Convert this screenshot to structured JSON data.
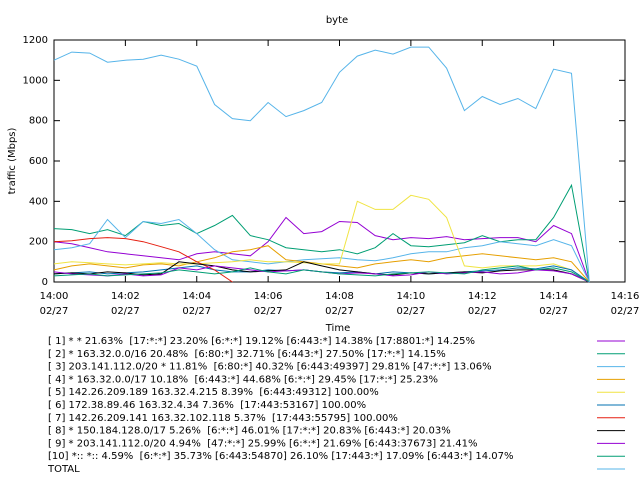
{
  "chart_data": {
    "type": "line",
    "title": "byte",
    "xlabel": "Time",
    "ylabel": "traffic (Mbps)",
    "x": [
      0,
      0.5,
      1,
      1.5,
      2,
      2.5,
      3,
      3.5,
      4,
      4.5,
      5,
      5.5,
      6,
      6.5,
      7,
      7.5,
      8,
      8.5,
      9,
      9.5,
      10,
      10.5,
      11,
      11.5,
      12,
      12.5,
      13,
      13.5,
      14,
      14.5,
      15
    ],
    "xlim": [
      0,
      16
    ],
    "xticks": [
      {
        "value": 0,
        "label": "14:00",
        "date": "02/27"
      },
      {
        "value": 2,
        "label": "14:02",
        "date": "02/27"
      },
      {
        "value": 4,
        "label": "14:04",
        "date": "02/27"
      },
      {
        "value": 6,
        "label": "14:06",
        "date": "02/27"
      },
      {
        "value": 8,
        "label": "14:08",
        "date": "02/27"
      },
      {
        "value": 10,
        "label": "14:10",
        "date": "02/27"
      },
      {
        "value": 12,
        "label": "14:12",
        "date": "02/27"
      },
      {
        "value": 14,
        "label": "14:14",
        "date": "02/27"
      },
      {
        "value": 16,
        "label": "14:16",
        "date": "02/27"
      }
    ],
    "ylim": [
      0,
      1200
    ],
    "yticks": [
      0,
      200,
      400,
      600,
      800,
      1000,
      1200
    ],
    "series": [
      {
        "name": "[ 1] * * 21.63%  [17:*:*] 23.20% [6:*:*] 19.12% [6:443:*] 14.38% [17:8801:*] 14.25%",
        "color": "#9400d3",
        "values": [
          200,
          190,
          170,
          150,
          140,
          130,
          120,
          110,
          140,
          150,
          140,
          130,
          200,
          320,
          240,
          250,
          300,
          295,
          230,
          210,
          220,
          215,
          225,
          210,
          215,
          220,
          220,
          200,
          280,
          240,
          0
        ]
      },
      {
        "name": "[ 2] * 163.32.0.0/16 20.48%  [6:80:*] 32.71% [6:443:*] 27.50% [17:*:*] 14.15%",
        "color": "#009e73",
        "values": [
          265,
          260,
          240,
          260,
          230,
          300,
          280,
          290,
          240,
          280,
          330,
          230,
          210,
          170,
          160,
          150,
          160,
          140,
          170,
          240,
          180,
          175,
          185,
          195,
          230,
          200,
          210,
          210,
          320,
          480,
          0
        ]
      },
      {
        "name": "[ 3] 203.141.112.0/20 * 11.81%  [6:80:*] 40.32% [6:443:49397] 29.81% [47:*:*] 13.06%",
        "color": "#56b4e9",
        "values": [
          160,
          170,
          190,
          310,
          220,
          300,
          290,
          310,
          240,
          160,
          110,
          100,
          90,
          100,
          110,
          115,
          120,
          110,
          105,
          120,
          140,
          150,
          150,
          170,
          180,
          200,
          190,
          180,
          210,
          180,
          0
        ]
      },
      {
        "name": "[ 4] * 163.32.0.0/17 10.18%  [6:443:*] 44.68% [6:*:*] 29.45% [17:*:*] 25.23%",
        "color": "#e69f00",
        "values": [
          60,
          80,
          90,
          80,
          70,
          85,
          90,
          80,
          100,
          120,
          150,
          160,
          180,
          110,
          100,
          90,
          80,
          70,
          90,
          100,
          110,
          100,
          120,
          130,
          140,
          130,
          120,
          110,
          120,
          100,
          0
        ]
      },
      {
        "name": "[ 5] 142.26.209.189 163.32.4.215 8.39%  [6:443:49312] 100.00%",
        "color": "#f0e442",
        "values": [
          90,
          100,
          95,
          90,
          85,
          90,
          95,
          90,
          90,
          95,
          100,
          110,
          100,
          100,
          95,
          90,
          90,
          400,
          360,
          360,
          430,
          410,
          320,
          80,
          70,
          80,
          80,
          80,
          90,
          60,
          0
        ]
      },
      {
        "name": "[ 6] 172.38.89.46 163.32.4.34 7.36%  [17:443:53167] 100.00%",
        "color": "#0072b2",
        "values": [
          40,
          45,
          50,
          40,
          45,
          50,
          60,
          70,
          80,
          60,
          50,
          50,
          60,
          55,
          60,
          50,
          45,
          50,
          40,
          50,
          45,
          40,
          45,
          50,
          55,
          60,
          70,
          65,
          80,
          60,
          0
        ]
      },
      {
        "name": "[ 7] 142.26.209.141 163.32.102.118 5.37%  [17:443:55795] 100.00%",
        "color": "#e51e10",
        "values": [
          200,
          205,
          215,
          220,
          215,
          200,
          175,
          150,
          100,
          60,
          0,
          null,
          null,
          null,
          null,
          null,
          null,
          null,
          null,
          null,
          null,
          null,
          null,
          null,
          null,
          null,
          null,
          null,
          null,
          null,
          null
        ]
      },
      {
        "name": "[ 8] * 150.184.128.0/17 5.26%  [6:*:*] 46.01% [17:*:*] 20.83% [6:443:*] 20.03%",
        "color": "#000000",
        "values": [
          40,
          45,
          40,
          50,
          45,
          35,
          40,
          100,
          90,
          80,
          60,
          50,
          55,
          60,
          100,
          80,
          60,
          50,
          40,
          35,
          45,
          40,
          45,
          50,
          45,
          55,
          60,
          60,
          60,
          40,
          0
        ]
      },
      {
        "name": "[ 9] * 203.141.112.0/20 4.94%  [47:*:*] 25.99% [6:*:*] 21.69% [6:443:37673] 21.41%",
        "color": "#9400d3",
        "values": [
          50,
          40,
          35,
          30,
          40,
          30,
          35,
          70,
          60,
          80,
          70,
          60,
          50,
          55,
          60,
          50,
          40,
          45,
          40,
          30,
          35,
          50,
          40,
          45,
          50,
          40,
          45,
          60,
          55,
          40,
          0
        ]
      },
      {
        "name": "[10] *:: *:: 4.59%  [6:*:*] 35.73% [6:443:54870] 26.10% [17:443:*] 17.09% [6:443:*] 14.07%",
        "color": "#009e73",
        "values": [
          30,
          35,
          40,
          30,
          35,
          40,
          45,
          60,
          50,
          40,
          50,
          70,
          50,
          40,
          60,
          50,
          40,
          35,
          30,
          40,
          45,
          50,
          45,
          40,
          60,
          70,
          80,
          60,
          70,
          50,
          0
        ]
      },
      {
        "name": "TOTAL",
        "color": "#56b4e9",
        "values": [
          1100,
          1140,
          1135,
          1090,
          1100,
          1105,
          1125,
          1105,
          1070,
          880,
          810,
          800,
          890,
          820,
          850,
          890,
          1040,
          1120,
          1150,
          1130,
          1165,
          1165,
          1060,
          850,
          920,
          880,
          910,
          860,
          1055,
          1035,
          0
        ]
      }
    ]
  }
}
